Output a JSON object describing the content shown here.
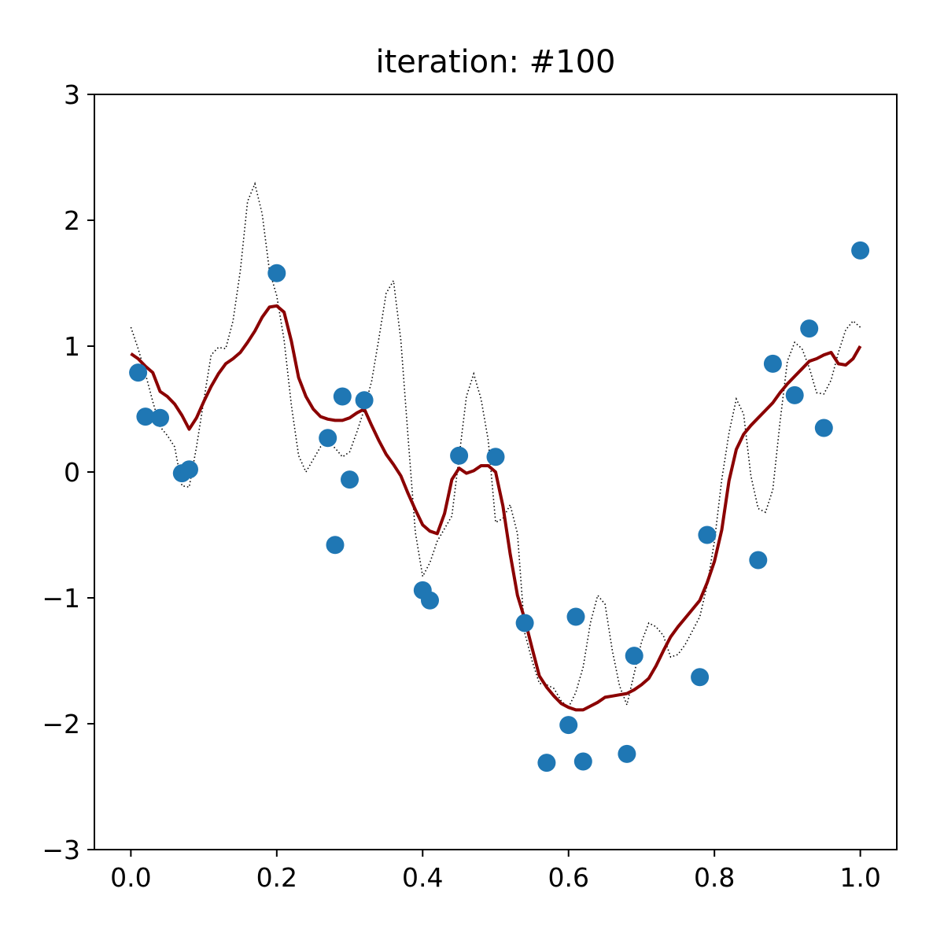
{
  "chart_data": {
    "type": "scatter",
    "title": "iteration: #100",
    "xlabel": "",
    "ylabel": "",
    "xlim": [
      -0.05,
      1.05
    ],
    "ylim": [
      -3,
      3
    ],
    "grid": false,
    "x_ticks": [
      0.0,
      0.2,
      0.4,
      0.6,
      0.8,
      1.0
    ],
    "x_tick_labels": [
      "0.0",
      "0.2",
      "0.4",
      "0.6",
      "0.8",
      "1.0"
    ],
    "y_ticks": [
      -3,
      -2,
      -1,
      0,
      1,
      2,
      3
    ],
    "y_tick_labels": [
      "−3",
      "−2",
      "−1",
      "0",
      "1",
      "2",
      "3"
    ],
    "series": [
      {
        "kind": "scatter",
        "color": "#1f77b4",
        "points": [
          [
            0.01,
            0.79
          ],
          [
            0.02,
            0.44
          ],
          [
            0.04,
            0.43
          ],
          [
            0.07,
            -0.01
          ],
          [
            0.08,
            0.02
          ],
          [
            0.2,
            1.58
          ],
          [
            0.27,
            0.27
          ],
          [
            0.28,
            -0.58
          ],
          [
            0.29,
            0.6
          ],
          [
            0.3,
            -0.06
          ],
          [
            0.32,
            0.57
          ],
          [
            0.4,
            -0.94
          ],
          [
            0.41,
            -1.02
          ],
          [
            0.45,
            0.13
          ],
          [
            0.5,
            0.12
          ],
          [
            0.54,
            -1.2
          ],
          [
            0.57,
            -2.31
          ],
          [
            0.6,
            -2.01
          ],
          [
            0.61,
            -1.15
          ],
          [
            0.62,
            -2.3
          ],
          [
            0.68,
            -2.24
          ],
          [
            0.69,
            -1.46
          ],
          [
            0.78,
            -1.63
          ],
          [
            0.79,
            -0.5
          ],
          [
            0.86,
            -0.7
          ],
          [
            0.88,
            0.86
          ],
          [
            0.91,
            0.61
          ],
          [
            0.93,
            1.14
          ],
          [
            0.95,
            0.35
          ],
          [
            1.0,
            1.76
          ]
        ]
      },
      {
        "kind": "line",
        "color": "#8b0000",
        "style": "solid",
        "points": [
          [
            0.0,
            0.94
          ],
          [
            0.01,
            0.9
          ],
          [
            0.02,
            0.84
          ],
          [
            0.03,
            0.79
          ],
          [
            0.04,
            0.64
          ],
          [
            0.05,
            0.6
          ],
          [
            0.06,
            0.54
          ],
          [
            0.07,
            0.45
          ],
          [
            0.08,
            0.34
          ],
          [
            0.09,
            0.43
          ],
          [
            0.1,
            0.56
          ],
          [
            0.11,
            0.68
          ],
          [
            0.12,
            0.78
          ],
          [
            0.13,
            0.86
          ],
          [
            0.14,
            0.9
          ],
          [
            0.15,
            0.95
          ],
          [
            0.16,
            1.03
          ],
          [
            0.17,
            1.12
          ],
          [
            0.18,
            1.23
          ],
          [
            0.19,
            1.31
          ],
          [
            0.2,
            1.32
          ],
          [
            0.21,
            1.27
          ],
          [
            0.22,
            1.04
          ],
          [
            0.23,
            0.75
          ],
          [
            0.24,
            0.6
          ],
          [
            0.25,
            0.5
          ],
          [
            0.26,
            0.44
          ],
          [
            0.27,
            0.42
          ],
          [
            0.28,
            0.41
          ],
          [
            0.29,
            0.41
          ],
          [
            0.3,
            0.43
          ],
          [
            0.31,
            0.47
          ],
          [
            0.32,
            0.5
          ],
          [
            0.33,
            0.37
          ],
          [
            0.34,
            0.25
          ],
          [
            0.35,
            0.14
          ],
          [
            0.36,
            0.06
          ],
          [
            0.37,
            -0.03
          ],
          [
            0.38,
            -0.17
          ],
          [
            0.39,
            -0.3
          ],
          [
            0.4,
            -0.42
          ],
          [
            0.41,
            -0.47
          ],
          [
            0.42,
            -0.49
          ],
          [
            0.43,
            -0.33
          ],
          [
            0.44,
            -0.06
          ],
          [
            0.45,
            0.03
          ],
          [
            0.46,
            -0.01
          ],
          [
            0.47,
            0.01
          ],
          [
            0.48,
            0.05
          ],
          [
            0.49,
            0.05
          ],
          [
            0.5,
            0.0
          ],
          [
            0.51,
            -0.27
          ],
          [
            0.52,
            -0.65
          ],
          [
            0.53,
            -0.98
          ],
          [
            0.54,
            -1.17
          ],
          [
            0.55,
            -1.4
          ],
          [
            0.56,
            -1.62
          ],
          [
            0.57,
            -1.71
          ],
          [
            0.58,
            -1.78
          ],
          [
            0.59,
            -1.84
          ],
          [
            0.6,
            -1.87
          ],
          [
            0.61,
            -1.89
          ],
          [
            0.62,
            -1.89
          ],
          [
            0.63,
            -1.86
          ],
          [
            0.64,
            -1.83
          ],
          [
            0.65,
            -1.79
          ],
          [
            0.66,
            -1.78
          ],
          [
            0.67,
            -1.77
          ],
          [
            0.68,
            -1.76
          ],
          [
            0.69,
            -1.73
          ],
          [
            0.7,
            -1.69
          ],
          [
            0.71,
            -1.64
          ],
          [
            0.72,
            -1.54
          ],
          [
            0.73,
            -1.42
          ],
          [
            0.74,
            -1.31
          ],
          [
            0.75,
            -1.23
          ],
          [
            0.76,
            -1.16
          ],
          [
            0.77,
            -1.09
          ],
          [
            0.78,
            -1.02
          ],
          [
            0.79,
            -0.88
          ],
          [
            0.8,
            -0.71
          ],
          [
            0.81,
            -0.46
          ],
          [
            0.82,
            -0.07
          ],
          [
            0.83,
            0.18
          ],
          [
            0.84,
            0.3
          ],
          [
            0.85,
            0.37
          ],
          [
            0.86,
            0.43
          ],
          [
            0.87,
            0.49
          ],
          [
            0.88,
            0.55
          ],
          [
            0.89,
            0.63
          ],
          [
            0.9,
            0.7
          ],
          [
            0.91,
            0.76
          ],
          [
            0.92,
            0.82
          ],
          [
            0.93,
            0.88
          ],
          [
            0.94,
            0.9
          ],
          [
            0.95,
            0.93
          ],
          [
            0.96,
            0.95
          ],
          [
            0.97,
            0.86
          ],
          [
            0.98,
            0.85
          ],
          [
            0.99,
            0.9
          ],
          [
            1.0,
            1.0
          ]
        ]
      },
      {
        "kind": "line",
        "color": "#000000",
        "style": "dotted",
        "points": [
          [
            0.0,
            1.15
          ],
          [
            0.01,
            0.98
          ],
          [
            0.02,
            0.78
          ],
          [
            0.03,
            0.56
          ],
          [
            0.04,
            0.36
          ],
          [
            0.05,
            0.29
          ],
          [
            0.06,
            0.2
          ],
          [
            0.07,
            -0.11
          ],
          [
            0.08,
            -0.12
          ],
          [
            0.09,
            0.2
          ],
          [
            0.1,
            0.57
          ],
          [
            0.11,
            0.93
          ],
          [
            0.12,
            0.99
          ],
          [
            0.13,
            0.98
          ],
          [
            0.14,
            1.2
          ],
          [
            0.15,
            1.6
          ],
          [
            0.16,
            2.15
          ],
          [
            0.17,
            2.29
          ],
          [
            0.18,
            2.05
          ],
          [
            0.19,
            1.6
          ],
          [
            0.2,
            1.4
          ],
          [
            0.21,
            1.05
          ],
          [
            0.22,
            0.53
          ],
          [
            0.23,
            0.13
          ],
          [
            0.24,
            0.0
          ],
          [
            0.25,
            0.1
          ],
          [
            0.26,
            0.2
          ],
          [
            0.27,
            0.24
          ],
          [
            0.28,
            0.19
          ],
          [
            0.29,
            0.12
          ],
          [
            0.3,
            0.16
          ],
          [
            0.31,
            0.32
          ],
          [
            0.32,
            0.5
          ],
          [
            0.33,
            0.72
          ],
          [
            0.34,
            1.06
          ],
          [
            0.35,
            1.42
          ],
          [
            0.36,
            1.52
          ],
          [
            0.37,
            1.05
          ],
          [
            0.38,
            0.28
          ],
          [
            0.39,
            -0.48
          ],
          [
            0.4,
            -0.83
          ],
          [
            0.41,
            -0.72
          ],
          [
            0.42,
            -0.55
          ],
          [
            0.43,
            -0.45
          ],
          [
            0.44,
            -0.35
          ],
          [
            0.45,
            0.12
          ],
          [
            0.46,
            0.6
          ],
          [
            0.47,
            0.78
          ],
          [
            0.48,
            0.58
          ],
          [
            0.49,
            0.25
          ],
          [
            0.5,
            -0.4
          ],
          [
            0.51,
            -0.37
          ],
          [
            0.52,
            -0.26
          ],
          [
            0.53,
            -0.49
          ],
          [
            0.54,
            -1.28
          ],
          [
            0.55,
            -1.5
          ],
          [
            0.56,
            -1.68
          ],
          [
            0.57,
            -1.69
          ],
          [
            0.58,
            -1.72
          ],
          [
            0.59,
            -1.82
          ],
          [
            0.6,
            -1.87
          ],
          [
            0.61,
            -1.75
          ],
          [
            0.62,
            -1.55
          ],
          [
            0.63,
            -1.2
          ],
          [
            0.64,
            -0.98
          ],
          [
            0.65,
            -1.05
          ],
          [
            0.66,
            -1.42
          ],
          [
            0.67,
            -1.7
          ],
          [
            0.68,
            -1.85
          ],
          [
            0.69,
            -1.6
          ],
          [
            0.7,
            -1.35
          ],
          [
            0.71,
            -1.2
          ],
          [
            0.72,
            -1.23
          ],
          [
            0.73,
            -1.3
          ],
          [
            0.74,
            -1.47
          ],
          [
            0.75,
            -1.45
          ],
          [
            0.76,
            -1.37
          ],
          [
            0.77,
            -1.26
          ],
          [
            0.78,
            -1.15
          ],
          [
            0.79,
            -0.9
          ],
          [
            0.8,
            -0.55
          ],
          [
            0.81,
            -0.06
          ],
          [
            0.82,
            0.31
          ],
          [
            0.83,
            0.58
          ],
          [
            0.84,
            0.46
          ],
          [
            0.85,
            -0.03
          ],
          [
            0.86,
            -0.29
          ],
          [
            0.87,
            -0.32
          ],
          [
            0.88,
            -0.14
          ],
          [
            0.89,
            0.4
          ],
          [
            0.9,
            0.88
          ],
          [
            0.91,
            1.03
          ],
          [
            0.92,
            0.98
          ],
          [
            0.93,
            0.83
          ],
          [
            0.94,
            0.63
          ],
          [
            0.95,
            0.62
          ],
          [
            0.96,
            0.73
          ],
          [
            0.97,
            0.95
          ],
          [
            0.98,
            1.13
          ],
          [
            0.99,
            1.2
          ],
          [
            1.0,
            1.15
          ]
        ]
      }
    ]
  }
}
